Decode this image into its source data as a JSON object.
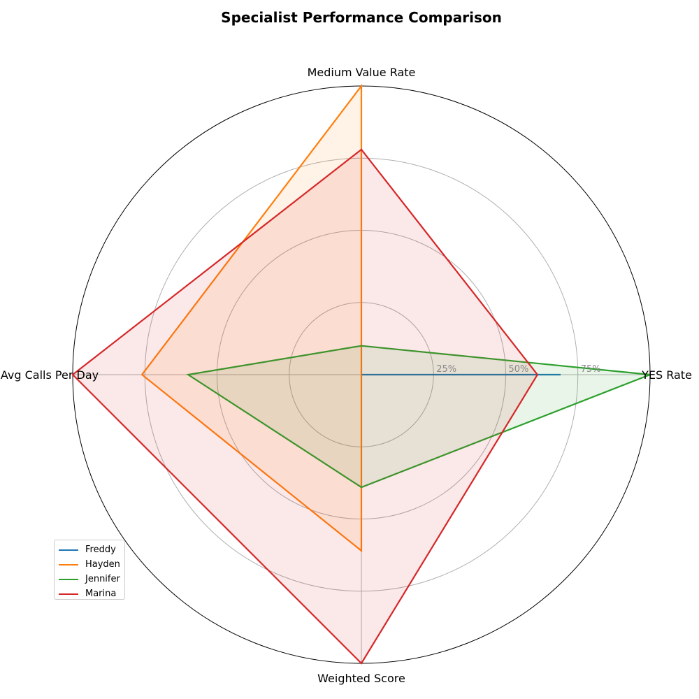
{
  "chart_data": {
    "type": "radar",
    "title": "Specialist Performance Comparison",
    "axes": [
      "YES Rate",
      "Medium Value Rate",
      "Avg Calls Per Day",
      "Weighted Score"
    ],
    "rlim": [
      0,
      100
    ],
    "ticks": [
      25,
      50,
      75
    ],
    "tick_labels": [
      "25%",
      "50%",
      "75%"
    ],
    "grid": true,
    "legend_position": "lower-left",
    "series": [
      {
        "name": "Freddy",
        "color": "#1f77b4",
        "values": [
          69,
          0,
          0,
          0
        ]
      },
      {
        "name": "Hayden",
        "color": "#ff7f0e",
        "values": [
          0,
          100,
          76,
          61
        ]
      },
      {
        "name": "Jennifer",
        "color": "#2ca02c",
        "values": [
          100,
          10,
          60,
          39
        ]
      },
      {
        "name": "Marina",
        "color": "#d62728",
        "values": [
          61,
          78,
          100,
          100
        ]
      }
    ]
  }
}
